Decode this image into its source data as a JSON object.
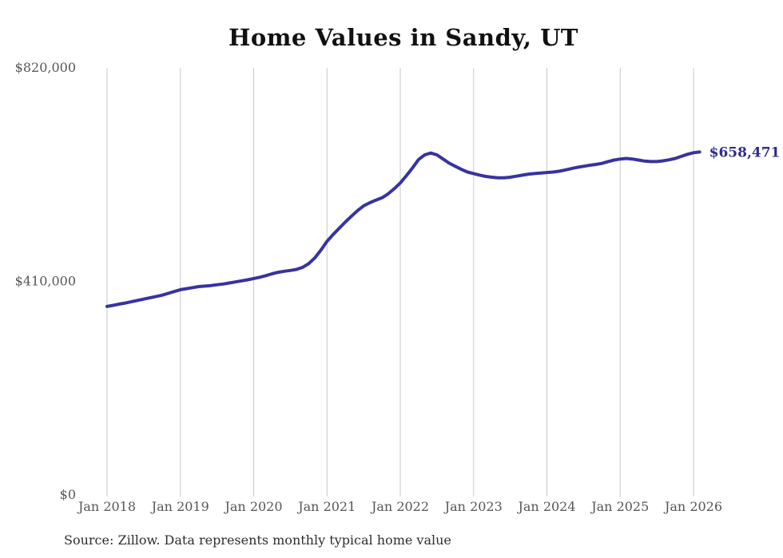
{
  "title": "Home Values in Sandy, UT",
  "source_note": "Source: Zillow. Data represents monthly typical home value",
  "end_label": "$658,471",
  "colors": {
    "line": "#3733a0",
    "end_label": "#2e2c8f",
    "axis_text": "#565656",
    "title_text": "#111111",
    "source_text": "#2e2e2e",
    "gridline": "#c9c9c9",
    "background": "#ffffff"
  },
  "chart_data": {
    "type": "line",
    "title": "Home Values in Sandy, UT",
    "unit": "USD",
    "x_start": "2018-01",
    "x_interval": "month",
    "x_tick_labels": [
      "Jan 2018",
      "Jan 2019",
      "Jan 2020",
      "Jan 2021",
      "Jan 2022",
      "Jan 2023",
      "Jan 2024",
      "Jan 2025",
      "Jan 2026"
    ],
    "y_ticks": [
      {
        "label": "$0",
        "value": 0
      },
      {
        "label": "$410,000",
        "value": 410000
      },
      {
        "label": "$820,000",
        "value": 820000
      }
    ],
    "ylim": [
      0,
      820000
    ],
    "grid": "vertical-only",
    "legend": "none",
    "last_value": 658471,
    "last_value_label": "$658,471",
    "series": [
      {
        "name": "Monthly typical home value",
        "values": [
          362000,
          364000,
          366500,
          368500,
          371000,
          373500,
          376000,
          378500,
          381000,
          383500,
          387000,
          390500,
          394000,
          396000,
          398000,
          400000,
          401000,
          402000,
          403500,
          405000,
          407000,
          409000,
          411000,
          413000,
          415500,
          418000,
          421000,
          424500,
          427500,
          429500,
          431000,
          433000,
          437000,
          444000,
          455000,
          470000,
          487000,
          500000,
          512000,
          524000,
          535000,
          546000,
          555000,
          561000,
          566000,
          570500,
          578000,
          588000,
          599000,
          613000,
          628000,
          644000,
          653000,
          656500,
          653000,
          645000,
          637000,
          631000,
          625000,
          620000,
          617000,
          614000,
          611500,
          610000,
          609000,
          609000,
          610000,
          612000,
          614000,
          616000,
          617000,
          618000,
          619000,
          620000,
          621500,
          624000,
          626500,
          629000,
          631000,
          633000,
          634500,
          636500,
          640000,
          643000,
          645000,
          646000,
          645000,
          643000,
          641000,
          640000,
          640000,
          641500,
          643500,
          646000,
          650000,
          654000,
          657000,
          658471
        ]
      }
    ]
  }
}
